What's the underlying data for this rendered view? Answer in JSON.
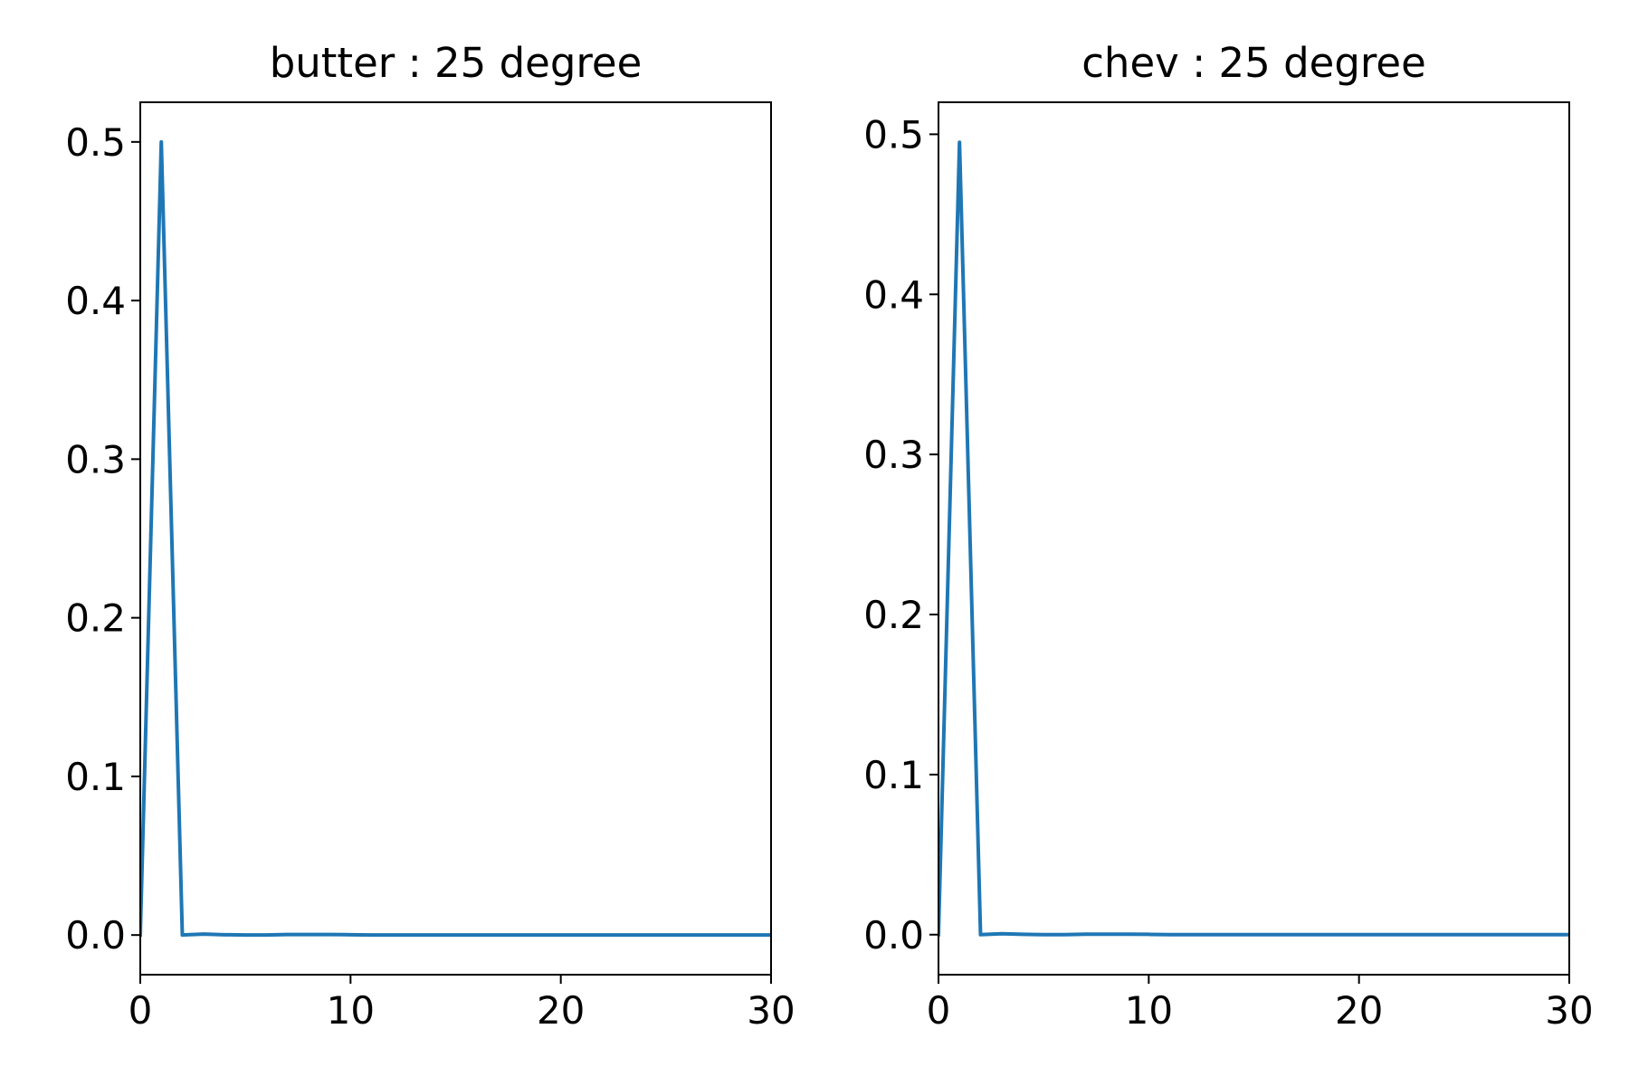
{
  "chart_data": [
    {
      "type": "line",
      "title": "butter : 25 degree",
      "xlabel": "",
      "ylabel": "",
      "xlim": [
        0,
        30
      ],
      "ylim": [
        -0.025,
        0.525
      ],
      "x_ticks": [
        0,
        10,
        20,
        30
      ],
      "y_ticks": [
        0.0,
        0.1,
        0.2,
        0.3,
        0.4,
        0.5
      ],
      "x_tick_labels": [
        "0",
        "10",
        "20",
        "30"
      ],
      "y_tick_labels": [
        "0.0",
        "0.1",
        "0.2",
        "0.3",
        "0.4",
        "0.5"
      ],
      "grid": false,
      "series": [
        {
          "color": "#1f77b4",
          "x": [
            0,
            1,
            2,
            3,
            4,
            5,
            6,
            7,
            8,
            9,
            10,
            11,
            12,
            13,
            14,
            15,
            16,
            17,
            18,
            19,
            20,
            21,
            22,
            23,
            24,
            25,
            26,
            27,
            28,
            29,
            30
          ],
          "y": [
            0.0,
            0.5,
            0.0,
            0.0006,
            0.0002,
            0.0,
            0.0,
            0.0003,
            0.0003,
            0.0003,
            0.0002,
            0.0,
            0.0,
            0.0,
            0.0,
            0.0,
            0.0,
            0.0,
            0.0,
            0.0,
            0.0,
            0.0,
            0.0,
            0.0,
            0.0,
            0.0,
            0.0,
            0.0,
            0.0,
            0.0,
            0.0
          ]
        }
      ]
    },
    {
      "type": "line",
      "title": "chev : 25 degree",
      "xlabel": "",
      "ylabel": "",
      "xlim": [
        0,
        30
      ],
      "ylim": [
        -0.025,
        0.52
      ],
      "x_ticks": [
        0,
        10,
        20,
        30
      ],
      "y_ticks": [
        0.0,
        0.1,
        0.2,
        0.3,
        0.4,
        0.5
      ],
      "x_tick_labels": [
        "0",
        "10",
        "20",
        "30"
      ],
      "y_tick_labels": [
        "0.0",
        "0.1",
        "0.2",
        "0.3",
        "0.4",
        "0.5"
      ],
      "grid": false,
      "series": [
        {
          "color": "#1f77b4",
          "x": [
            0,
            1,
            2,
            3,
            4,
            5,
            6,
            7,
            8,
            9,
            10,
            11,
            12,
            13,
            14,
            15,
            16,
            17,
            18,
            19,
            20,
            21,
            22,
            23,
            24,
            25,
            26,
            27,
            28,
            29,
            30
          ],
          "y": [
            0.0,
            0.495,
            0.0,
            0.0006,
            0.0002,
            0.0,
            0.0,
            0.0003,
            0.0003,
            0.0003,
            0.0002,
            0.0,
            0.0,
            0.0,
            0.0,
            0.0,
            0.0,
            0.0,
            0.0,
            0.0,
            0.0,
            0.0,
            0.0,
            0.0,
            0.0,
            0.0,
            0.0,
            0.0,
            0.0,
            0.0,
            0.0
          ]
        }
      ]
    }
  ]
}
